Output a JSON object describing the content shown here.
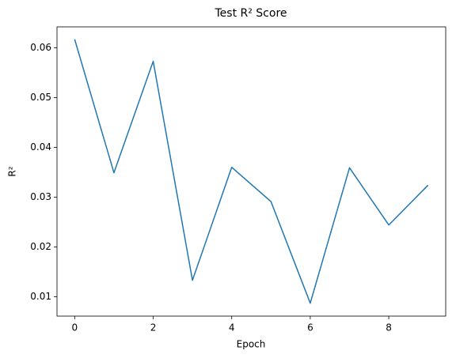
{
  "chart_data": {
    "type": "line",
    "title": "Test R² Score",
    "xlabel": "Epoch",
    "ylabel": "R²",
    "x": [
      0,
      1,
      2,
      3,
      4,
      5,
      6,
      7,
      8,
      9
    ],
    "series": [
      {
        "name": "Test R²",
        "color": "#1f77b4",
        "values": [
          0.0617,
          0.0349,
          0.0573,
          0.0133,
          0.036,
          0.0291,
          0.0087,
          0.0359,
          0.0244,
          0.0324
        ]
      }
    ],
    "xlim": [
      -0.45,
      9.45
    ],
    "xticks": [
      0,
      2,
      4,
      6,
      8
    ],
    "ylim": [
      0.0061,
      0.0642
    ],
    "yticks": [
      0.01,
      0.02,
      0.03,
      0.04,
      0.05,
      0.06
    ],
    "grid": false
  }
}
